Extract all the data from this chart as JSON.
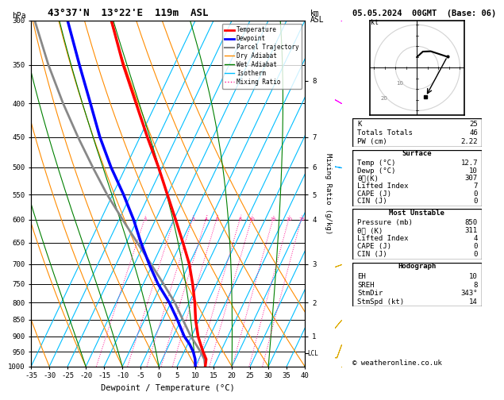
{
  "title_left": "43°37'N  13°22'E  119m  ASL",
  "title_date": "05.05.2024  00GMT  (Base: 06)",
  "xlabel": "Dewpoint / Temperature (°C)",
  "pressure_levels": [
    300,
    350,
    400,
    450,
    500,
    550,
    600,
    650,
    700,
    750,
    800,
    850,
    900,
    950,
    1000
  ],
  "xlim": [
    -35,
    40
  ],
  "pmin": 300,
  "pmax": 1000,
  "skew": 45,
  "temp_profile_p": [
    1000,
    975,
    950,
    925,
    900,
    850,
    800,
    750,
    700,
    650,
    600,
    550,
    500,
    450,
    400,
    350,
    300
  ],
  "temp_profile_T": [
    12.7,
    12.0,
    10.2,
    8.5,
    6.8,
    4.0,
    1.5,
    -1.5,
    -5.0,
    -9.5,
    -14.5,
    -20.0,
    -26.0,
    -33.0,
    -40.5,
    -49.0,
    -58.0
  ],
  "dewp_profile_p": [
    1000,
    975,
    950,
    925,
    900,
    850,
    800,
    750,
    700,
    650,
    600,
    550,
    500,
    450,
    400,
    350,
    300
  ],
  "dewp_profile_T": [
    10.0,
    9.0,
    7.5,
    5.5,
    3.0,
    -1.0,
    -5.5,
    -11.0,
    -16.0,
    -21.0,
    -26.0,
    -32.0,
    -39.0,
    -46.0,
    -53.0,
    -61.0,
    -70.0
  ],
  "parcel_profile_p": [
    1000,
    975,
    950,
    925,
    900,
    850,
    800,
    750,
    700,
    650,
    600,
    550,
    500,
    450,
    400,
    350,
    300
  ],
  "parcel_profile_T": [
    12.7,
    11.5,
    9.5,
    7.2,
    4.8,
    0.5,
    -4.0,
    -9.5,
    -15.5,
    -22.0,
    -29.0,
    -36.5,
    -44.0,
    -52.0,
    -60.5,
    -69.5,
    -79.0
  ],
  "lcl_pressure": 955,
  "mixing_ratio_vals": [
    1,
    2,
    3,
    4,
    5,
    8,
    10,
    15,
    20,
    25
  ],
  "isotherm_vals": [
    -35,
    -30,
    -25,
    -20,
    -15,
    -10,
    -5,
    0,
    5,
    10,
    15,
    20,
    25,
    30,
    35,
    40
  ],
  "dry_adiabat_starts": [
    -100,
    -90,
    -80,
    -70,
    -60,
    -50,
    -40,
    -30,
    -20,
    -10,
    0,
    10,
    20,
    30,
    40,
    50
  ],
  "wet_adiabat_starts": [
    -20,
    -10,
    0,
    10,
    20,
    30,
    40
  ],
  "km_ticks": [
    1,
    2,
    3,
    4,
    5,
    6,
    7,
    8
  ],
  "km_pressures": [
    900,
    800,
    700,
    600,
    550,
    500,
    450,
    370
  ],
  "c_temp": "#ff0000",
  "c_dewp": "#0000ff",
  "c_parcel": "#888888",
  "c_dry": "#ff8c00",
  "c_wet": "#008000",
  "c_iso": "#00bfff",
  "c_mr": "#ff1493",
  "wind_p": [
    1000,
    925,
    850,
    700,
    500,
    400,
    300
  ],
  "wind_spd": [
    5,
    8,
    10,
    15,
    25,
    30,
    35
  ],
  "wind_dir": [
    180,
    200,
    220,
    250,
    280,
    300,
    320
  ],
  "wind_colors": [
    "#ddaa00",
    "#ddaa00",
    "#ddaa00",
    "#ddaa00",
    "#00aaff",
    "#ff00ff",
    "#ff00ff"
  ],
  "hodo_spd": [
    5,
    8,
    10,
    15
  ],
  "hodo_dir": [
    180,
    200,
    220,
    250
  ],
  "sm_dir": 343,
  "sm_spd": 14,
  "K": 25,
  "TT": 46,
  "PW": "2.22",
  "sfc_temp": "12.7",
  "sfc_dewp": "10",
  "theta_e_sfc": 307,
  "LI_sfc": 7,
  "CAPE_sfc": 0,
  "CIN_sfc": 0,
  "mu_press": 850,
  "theta_e_mu": 311,
  "LI_mu": 4,
  "CAPE_mu": 0,
  "CIN_mu": 0,
  "EH": 10,
  "SREH": 8,
  "StmDir": "343°",
  "StmSpd": 14
}
